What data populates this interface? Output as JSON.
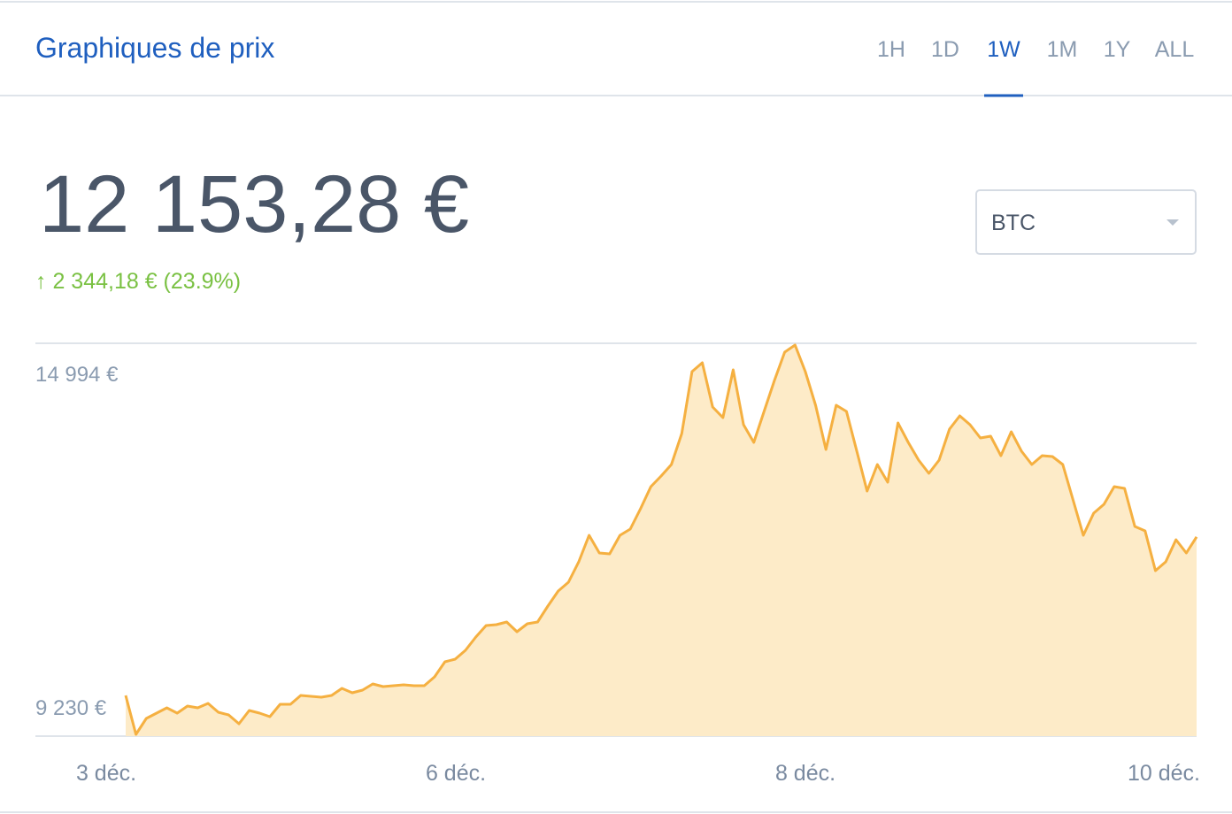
{
  "header": {
    "title": "Graphiques de prix",
    "tabs": [
      "1H",
      "1D",
      "1W",
      "1M",
      "1Y",
      "ALL"
    ],
    "active_tab": "1W"
  },
  "price": "12 153,28 €",
  "change": "↑ 2 344,18 € (23.9%)",
  "currency_select": "BTC",
  "chart_data": {
    "type": "area",
    "color": "#f5b041",
    "fill": "#fdebc8",
    "grid": true,
    "ylim": [
      9230,
      14994
    ],
    "yticks": [
      {
        "value": 14994,
        "label": "14 994 €"
      },
      {
        "value": 9230,
        "label": "9 230 €"
      }
    ],
    "x_labels": [
      "3 déc.",
      "6 déc.",
      "8 déc.",
      "10 déc."
    ],
    "values": [
      9827,
      9256,
      9490,
      9568,
      9645,
      9568,
      9671,
      9645,
      9710,
      9580,
      9542,
      9412,
      9606,
      9568,
      9516,
      9697,
      9697,
      9827,
      9814,
      9801,
      9827,
      9931,
      9866,
      9905,
      9996,
      9957,
      9970,
      9983,
      9970,
      9970,
      10100,
      10320,
      10359,
      10489,
      10684,
      10853,
      10866,
      10905,
      10762,
      10879,
      10905,
      11138,
      11359,
      11489,
      11787,
      12177,
      11917,
      11904,
      12177,
      12268,
      12566,
      12891,
      13047,
      13215,
      13670,
      14578,
      14708,
      14059,
      13904,
      14604,
      13800,
      13540,
      13994,
      14449,
      14864,
      14968,
      14578,
      14085,
      13436,
      14085,
      13994,
      13410,
      12826,
      13215,
      12956,
      13826,
      13540,
      13280,
      13086,
      13280,
      13735,
      13930,
      13800,
      13605,
      13631,
      13345,
      13696,
      13410,
      13215,
      13345,
      13332,
      13215,
      12696,
      12177,
      12501,
      12631,
      12891,
      12865,
      12307,
      12242,
      11658,
      11787,
      12112,
      11917,
      12153
    ]
  }
}
